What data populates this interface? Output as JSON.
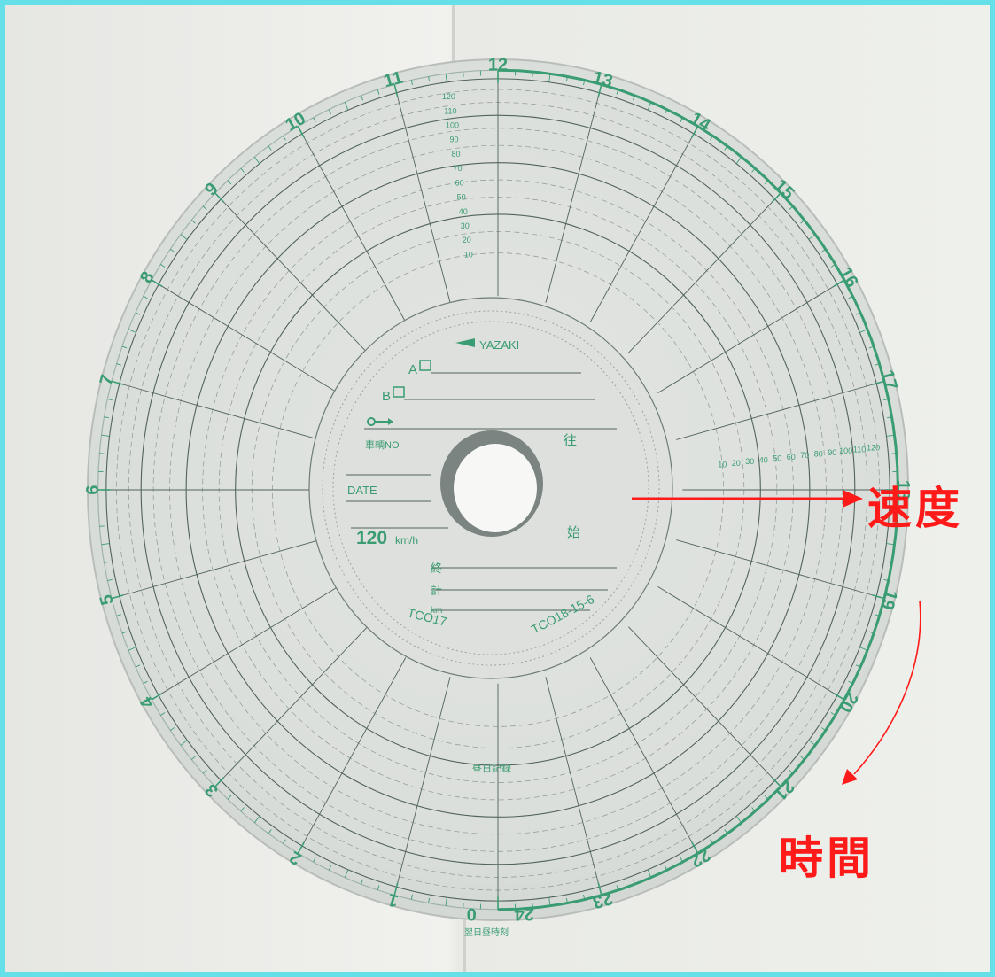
{
  "chart_labels": {
    "brand": "YAZAKI",
    "slot_a": "A",
    "slot_b": "B",
    "vehicle_no": "車輌NO",
    "date": "DATE",
    "speed_max": "120",
    "speed_unit": "km/h",
    "model_left": "TCO17",
    "model_right": "TCO18-15-6",
    "side_mark_1": "往",
    "side_mark_2": "始",
    "row_1": "終",
    "row_2": "計",
    "row_3": "km",
    "bottom_mark": "昼日記録",
    "bottom_text": "翌日昼時刻",
    "hour_labels": [
      "0",
      "1",
      "2",
      "3",
      "4",
      "5",
      "6",
      "7",
      "8",
      "9",
      "10",
      "11",
      "12",
      "13",
      "14",
      "15",
      "16",
      "17",
      "18",
      "19",
      "20",
      "21",
      "22",
      "23",
      "24"
    ],
    "speed_scale_labels": [
      "10",
      "20",
      "30",
      "40",
      "50",
      "60",
      "70",
      "80",
      "90",
      "100",
      "110",
      "120"
    ]
  },
  "annotations": {
    "speed": "速度",
    "time": "時間"
  },
  "colors": {
    "disc": "#dfe2de",
    "ink_green": "#3a9c72",
    "ink_dark": "#52635c",
    "annotation_red": "#ff1a1a",
    "frame_border": "#66e0e8"
  }
}
